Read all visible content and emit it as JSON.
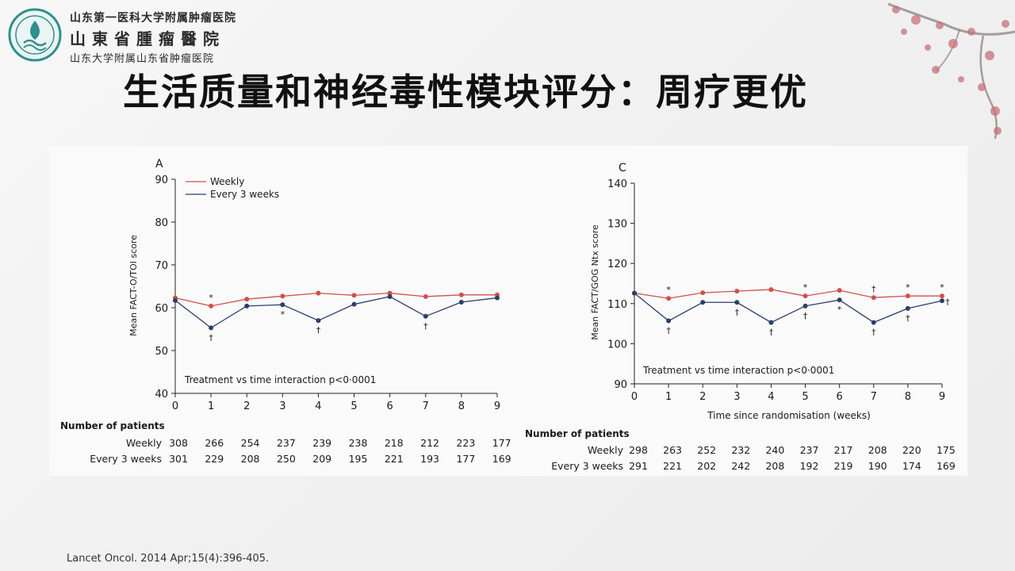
{
  "institution": {
    "line1": "山东第一医科大学附属肿瘤医院",
    "line2": "山東省腫瘤醫院",
    "line3": "山东大学附属山东省肿瘤医院"
  },
  "slide": {
    "title": "生活质量和神经毒性模块评分：周疗更优",
    "citation": "Lancet Oncol. 2014 Apr;15(4):396-405."
  },
  "colors": {
    "weekly": "#d0504a",
    "every3": "#2b3f6b",
    "axis": "#222222"
  },
  "chart_data": [
    {
      "type": "line",
      "panel_label": "A",
      "ylabel": "Mean FACT-O/TOI score",
      "xlabel": "",
      "ylim": [
        40,
        90
      ],
      "yticks": [
        40,
        50,
        60,
        70,
        80,
        90
      ],
      "x": [
        0,
        1,
        2,
        3,
        4,
        5,
        6,
        7,
        8,
        9
      ],
      "legend": [
        "Weekly",
        "Every 3 weeks"
      ],
      "legend_position": "top-left",
      "series": [
        {
          "name": "Weekly",
          "values": [
            62.3,
            60.4,
            62.0,
            62.7,
            63.4,
            62.9,
            63.4,
            62.6,
            63.0,
            63.0
          ]
        },
        {
          "name": "Every 3 weeks",
          "values": [
            61.7,
            55.3,
            60.4,
            60.7,
            57.0,
            60.8,
            62.6,
            58.0,
            61.3,
            62.3
          ]
        }
      ],
      "annotation": "Treatment vs time interaction p<0·0001",
      "markers": [
        {
          "x": 1,
          "symbol": "*",
          "pos": "above-weekly"
        },
        {
          "x": 1,
          "symbol": "†",
          "pos": "below-every3"
        },
        {
          "x": 3,
          "symbol": "*",
          "pos": "below-every3"
        },
        {
          "x": 4,
          "symbol": "†",
          "pos": "below-every3"
        },
        {
          "x": 7,
          "symbol": "†",
          "pos": "below-every3"
        }
      ],
      "patients": {
        "title": "Number of patients",
        "rows": [
          {
            "label": "Weekly",
            "values": [
              "308",
              "266",
              "254",
              "237",
              "239",
              "238",
              "218",
              "212",
              "223",
              "177"
            ]
          },
          {
            "label": "Every 3 weeks",
            "values": [
              "301",
              "229",
              "208",
              "250",
              "209",
              "195",
              "221",
              "193",
              "177",
              "169"
            ]
          }
        ]
      }
    },
    {
      "type": "line",
      "panel_label": "C",
      "ylabel": "Mean FACT/GOG Ntx score",
      "xlabel": "Time since randomisation (weeks)",
      "ylim": [
        90,
        140
      ],
      "yticks": [
        90,
        100,
        110,
        120,
        130,
        140
      ],
      "x": [
        0,
        1,
        2,
        3,
        4,
        5,
        6,
        7,
        8,
        9
      ],
      "series": [
        {
          "name": "Weekly",
          "values": [
            112.6,
            111.3,
            112.7,
            113.1,
            113.5,
            111.9,
            113.3,
            111.5,
            111.9,
            111.9
          ]
        },
        {
          "name": "Every 3 weeks",
          "values": [
            112.6,
            105.7,
            110.3,
            110.3,
            105.3,
            109.4,
            110.9,
            105.3,
            108.8,
            110.7
          ]
        }
      ],
      "annotation": "Treatment vs time interaction p<0·0001",
      "markers": [
        {
          "x": 1,
          "symbol": "*",
          "pos": "above-weekly"
        },
        {
          "x": 1,
          "symbol": "†",
          "pos": "below-every3"
        },
        {
          "x": 3,
          "symbol": "†",
          "pos": "below-every3"
        },
        {
          "x": 4,
          "symbol": "†",
          "pos": "below-every3"
        },
        {
          "x": 5,
          "symbol": "*",
          "pos": "above-weekly"
        },
        {
          "x": 5,
          "symbol": "†",
          "pos": "below-every3"
        },
        {
          "x": 6,
          "symbol": "*",
          "pos": "below-every3"
        },
        {
          "x": 7,
          "symbol": "†",
          "pos": "above-weekly"
        },
        {
          "x": 7,
          "symbol": "†",
          "pos": "below-every3"
        },
        {
          "x": 8,
          "symbol": "*",
          "pos": "above-weekly"
        },
        {
          "x": 8,
          "symbol": "†",
          "pos": "below-every3"
        },
        {
          "x": 9,
          "symbol": "*",
          "pos": "above-weekly"
        },
        {
          "x": 9,
          "symbol": "†",
          "pos": "right-every3"
        }
      ],
      "patients": {
        "title": "Number of patients",
        "rows": [
          {
            "label": "Weekly",
            "values": [
              "298",
              "263",
              "252",
              "232",
              "240",
              "237",
              "217",
              "208",
              "220",
              "175"
            ]
          },
          {
            "label": "Every 3 weeks",
            "values": [
              "291",
              "221",
              "202",
              "242",
              "208",
              "192",
              "219",
              "190",
              "174",
              "169"
            ]
          }
        ]
      }
    }
  ]
}
